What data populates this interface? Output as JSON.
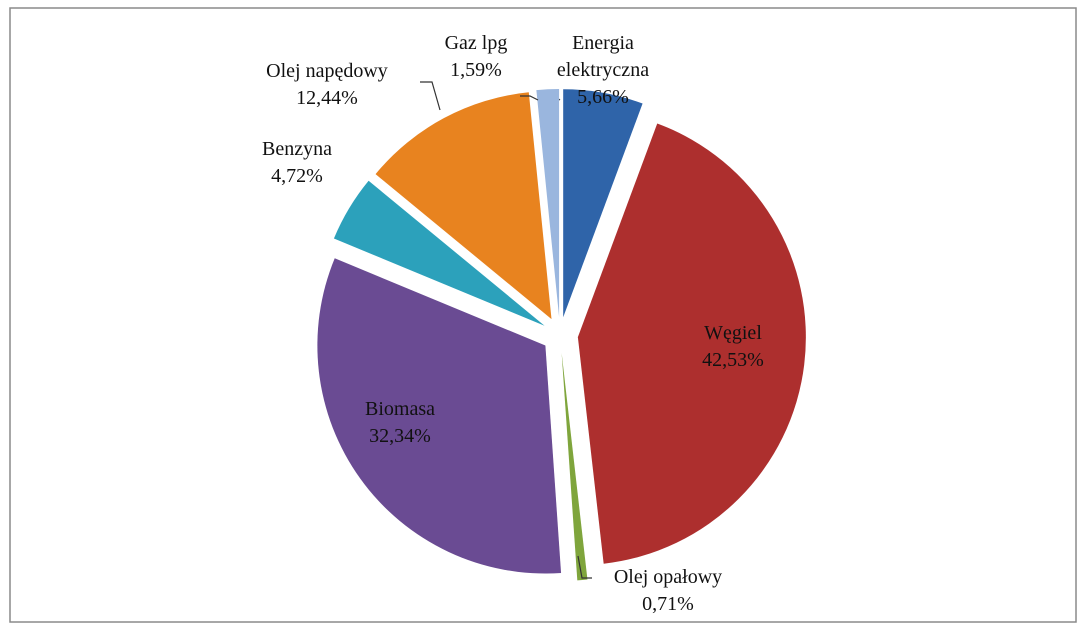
{
  "chart_data": {
    "type": "pie",
    "categories": [
      "Energia elektryczna",
      "Węgiel",
      "Olej opałowy",
      "Biomasa",
      "Benzyna",
      "Olej napędowy",
      "Gaz lpg"
    ],
    "values": [
      5.66,
      42.53,
      0.71,
      32.34,
      4.72,
      12.44,
      1.59
    ],
    "value_labels": [
      "5,66%",
      "42,53%",
      "0,71%",
      "32,34%",
      "4,72%",
      "12,44%",
      "1,59%"
    ],
    "colors": [
      "#2f64a9",
      "#ad2f2e",
      "#7fa53c",
      "#6a4b93",
      "#2ca1bb",
      "#e8831f",
      "#9ab6de"
    ]
  }
}
